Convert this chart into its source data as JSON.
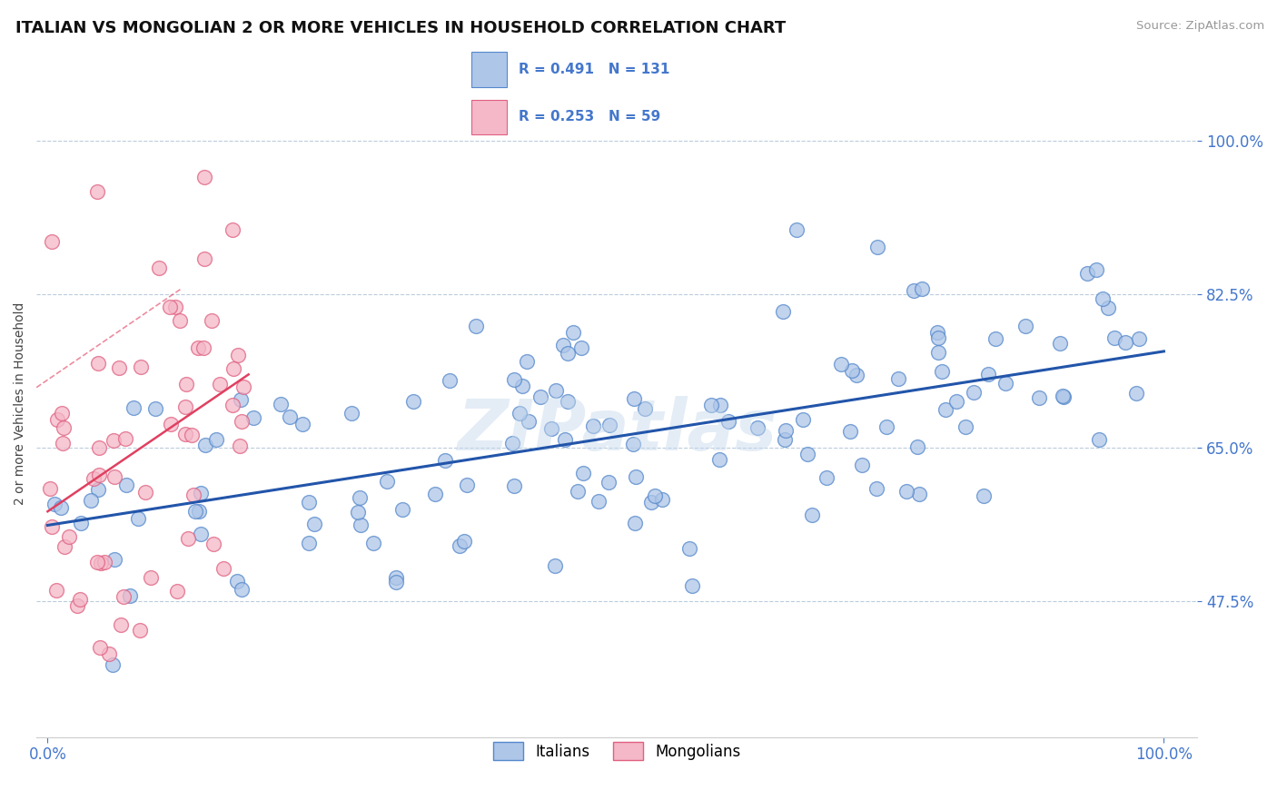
{
  "title": "ITALIAN VS MONGOLIAN 2 OR MORE VEHICLES IN HOUSEHOLD CORRELATION CHART",
  "source": "Source: ZipAtlas.com",
  "ylabel": "2 or more Vehicles in Household",
  "italian_color": "#aec6e8",
  "italian_edge": "#5588cc",
  "mongolian_color": "#f4b8c8",
  "mongolian_edge": "#e06080",
  "trend_italian_color": "#2255aa",
  "trend_mongolian_color": "#e04060",
  "R_italian": 0.491,
  "N_italian": 131,
  "R_mongolian": 0.253,
  "N_mongolian": 59,
  "watermark": "ZIPatlas",
  "ytick_vals": [
    47.5,
    65.0,
    82.5,
    100.0
  ],
  "ytick_labels": [
    "47.5%",
    "65.0%",
    "82.5%",
    "100.0%"
  ],
  "xtick_vals": [
    0.0,
    100.0
  ],
  "xtick_labels": [
    "0.0%",
    "100.0%"
  ],
  "xlim": [
    -1,
    103
  ],
  "ylim": [
    32,
    108
  ],
  "grid_color": "#bbccdd",
  "axis_color": "#4477cc",
  "tick_color": "#4477cc"
}
